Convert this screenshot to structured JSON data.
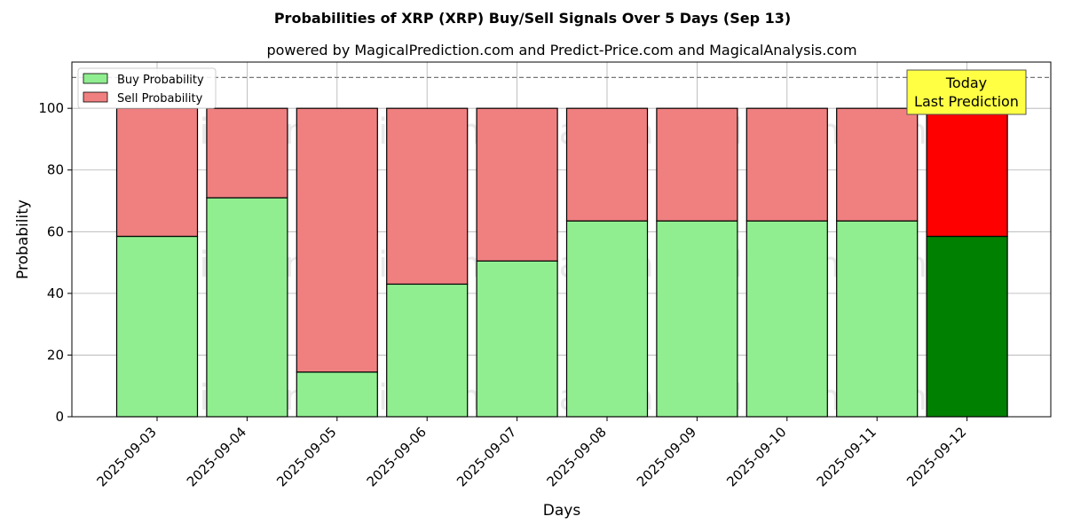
{
  "chart_data": {
    "type": "bar",
    "stacked": true,
    "title": "Probabilities of XRP (XRP) Buy/Sell Signals Over 5 Days (Sep 13)",
    "subtitle": "powered by MagicalPrediction.com and Predict-Price.com and MagicalAnalysis.com",
    "xlabel": "Days",
    "ylabel": "Probability",
    "ylim": [
      0,
      115
    ],
    "yticks": [
      0,
      20,
      40,
      60,
      80,
      100
    ],
    "reference_line": 110,
    "grid": true,
    "legend_position": "top-left",
    "categories": [
      "2025-09-03",
      "2025-09-04",
      "2025-09-05",
      "2025-09-06",
      "2025-09-07",
      "2025-09-08",
      "2025-09-09",
      "2025-09-10",
      "2025-09-11",
      "2025-09-12"
    ],
    "series": [
      {
        "name": "Buy Probability",
        "values": [
          58.5,
          71,
          14.5,
          43,
          50.5,
          63.5,
          63.5,
          63.5,
          63.5,
          58.5
        ],
        "color": "#90ee90",
        "highlight_color": "#008000"
      },
      {
        "name": "Sell Probability",
        "values": [
          41.5,
          29,
          85.5,
          57,
          49.5,
          36.5,
          36.5,
          36.5,
          36.5,
          41.5
        ],
        "color": "#f08080",
        "highlight_color": "#ff0000"
      }
    ],
    "highlight_index": 9,
    "annotation": {
      "line1": "Today",
      "line2": "Last Prediction",
      "background": "#ffff44"
    },
    "watermarks": [
      "MagicalAnalysis.com",
      "MagicalPrediction.com"
    ]
  }
}
